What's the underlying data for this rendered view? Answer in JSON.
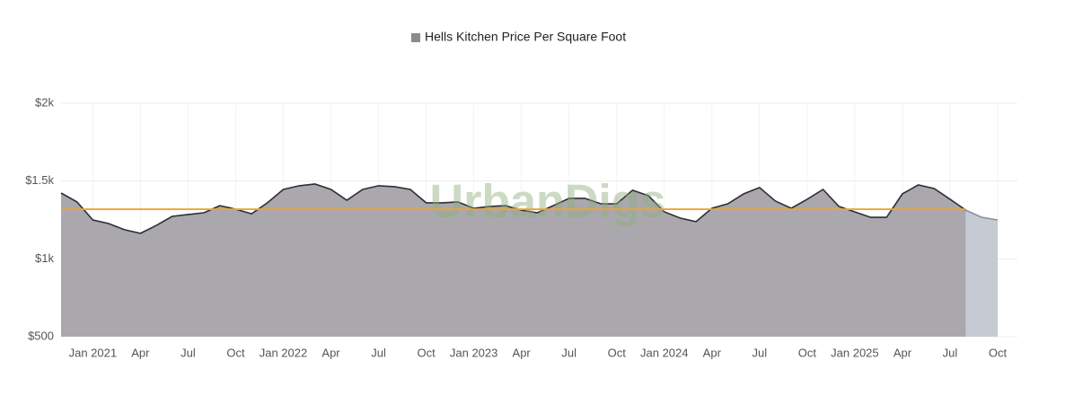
{
  "chart_data": {
    "type": "area",
    "x": [
      "2020-11",
      "2020-12",
      "2021-01",
      "2021-02",
      "2021-03",
      "2021-04",
      "2021-05",
      "2021-06",
      "2021-07",
      "2021-08",
      "2021-09",
      "2021-10",
      "2021-11",
      "2021-12",
      "2022-01",
      "2022-02",
      "2022-03",
      "2022-04",
      "2022-05",
      "2022-06",
      "2022-07",
      "2022-08",
      "2022-09",
      "2022-10",
      "2022-11",
      "2022-12",
      "2023-01",
      "2023-02",
      "2023-03",
      "2023-04",
      "2023-05",
      "2023-06",
      "2023-07",
      "2023-08",
      "2023-09",
      "2023-10",
      "2023-11",
      "2023-12",
      "2024-01",
      "2024-02",
      "2024-03",
      "2024-04",
      "2024-05",
      "2024-06",
      "2024-07",
      "2024-08",
      "2024-09",
      "2024-10",
      "2024-11",
      "2024-12",
      "2025-01",
      "2025-02",
      "2025-03",
      "2025-04",
      "2025-05",
      "2025-06",
      "2025-07",
      "2025-08",
      "2025-09",
      "2025-10"
    ],
    "series": [
      {
        "name": "Hells Kitchen Price Per Square Foot",
        "color": "#aaa8ad",
        "line_color": "#2e2e34",
        "values": [
          1423,
          1366,
          1250,
          1227,
          1187,
          1164,
          1215,
          1273,
          1285,
          1296,
          1342,
          1319,
          1290,
          1360,
          1446,
          1470,
          1481,
          1446,
          1377,
          1446,
          1470,
          1464,
          1446,
          1360,
          1360,
          1366,
          1325,
          1337,
          1342,
          1313,
          1296,
          1342,
          1389,
          1389,
          1354,
          1354,
          1441,
          1406,
          1302,
          1262,
          1239,
          1325,
          1354,
          1418,
          1458,
          1371,
          1325,
          1383,
          1446,
          1337,
          1302,
          1267,
          1267,
          1418,
          1475,
          1452,
          1383,
          1313,
          null,
          null
        ]
      },
      {
        "color": "#c6cad3",
        "line_color": "#8a90a0",
        "values": [
          null,
          null,
          null,
          null,
          null,
          null,
          null,
          null,
          null,
          null,
          null,
          null,
          null,
          null,
          null,
          null,
          null,
          null,
          null,
          null,
          null,
          null,
          null,
          null,
          null,
          null,
          null,
          null,
          null,
          null,
          null,
          null,
          null,
          null,
          null,
          null,
          null,
          null,
          null,
          null,
          null,
          null,
          null,
          null,
          null,
          null,
          null,
          null,
          null,
          null,
          null,
          null,
          null,
          null,
          null,
          null,
          null,
          1313,
          1267,
          1250
        ]
      }
    ],
    "reference_line": {
      "value": 1319,
      "color": "#f0a232"
    },
    "watermark": "UrbanDigs",
    "xlim": [
      "2020-11",
      "2025-10"
    ],
    "xticks": [
      {
        "value": "2021-01",
        "label": "Jan 2021"
      },
      {
        "value": "2021-04",
        "label": "Apr"
      },
      {
        "value": "2021-07",
        "label": "Jul"
      },
      {
        "value": "2021-10",
        "label": "Oct"
      },
      {
        "value": "2022-01",
        "label": "Jan 2022"
      },
      {
        "value": "2022-04",
        "label": "Apr"
      },
      {
        "value": "2022-07",
        "label": "Jul"
      },
      {
        "value": "2022-10",
        "label": "Oct"
      },
      {
        "value": "2023-01",
        "label": "Jan 2023"
      },
      {
        "value": "2023-04",
        "label": "Apr"
      },
      {
        "value": "2023-07",
        "label": "Jul"
      },
      {
        "value": "2023-10",
        "label": "Oct"
      },
      {
        "value": "2024-01",
        "label": "Jan 2024"
      },
      {
        "value": "2024-04",
        "label": "Apr"
      },
      {
        "value": "2024-07",
        "label": "Jul"
      },
      {
        "value": "2024-10",
        "label": "Oct"
      },
      {
        "value": "2025-01",
        "label": "Jan 2025"
      },
      {
        "value": "2025-04",
        "label": "Apr"
      },
      {
        "value": "2025-07",
        "label": "Jul"
      },
      {
        "value": "2025-10",
        "label": "Oct"
      }
    ],
    "ylim": [
      500,
      2000
    ],
    "yticks": [
      {
        "value": 500,
        "label": "$500"
      },
      {
        "value": 1000,
        "label": "$1k"
      },
      {
        "value": 1500,
        "label": "$1.5k"
      },
      {
        "value": 2000,
        "label": "$2k"
      }
    ],
    "grid": true,
    "legend": "top"
  }
}
